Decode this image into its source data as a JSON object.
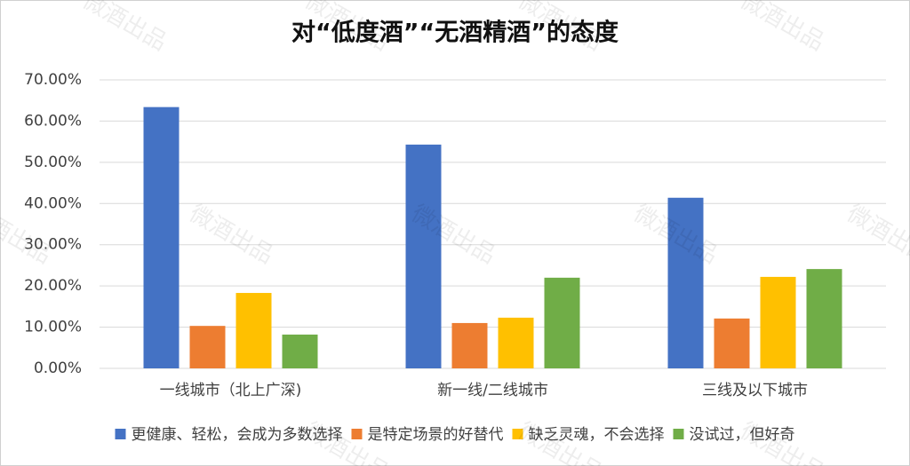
{
  "chart_data": {
    "type": "bar",
    "title": "对“低度酒”“无酒精酒”的态度",
    "watermark": "微酒出品",
    "categories": [
      "一线城市（北上广深)",
      "新一线/二线城市",
      "三线及以下城市"
    ],
    "series": [
      {
        "name": "更健康、轻松，会成为多数选择",
        "color": "#4472c4",
        "values": [
          63.4,
          54.3,
          41.4
        ]
      },
      {
        "name": "是特定场景的好替代",
        "color": "#ed7d31",
        "values": [
          10.3,
          11.0,
          12.1
        ]
      },
      {
        "name": "缺乏灵魂，不会选择",
        "color": "#ffc000",
        "values": [
          18.3,
          12.3,
          22.2
        ]
      },
      {
        "name": "没试过，但好奇",
        "color": "#70ad47",
        "values": [
          8.2,
          22.0,
          24.1
        ]
      }
    ],
    "ylim": [
      0,
      70
    ],
    "yticks": [
      {
        "value": 0,
        "label": "0.00%"
      },
      {
        "value": 10,
        "label": "10.00%"
      },
      {
        "value": 20,
        "label": "20.00%"
      },
      {
        "value": 30,
        "label": "30.00%"
      },
      {
        "value": 40,
        "label": "40.00%"
      },
      {
        "value": 50,
        "label": "50.00%"
      },
      {
        "value": 60,
        "label": "60.00%"
      },
      {
        "value": 70,
        "label": "70.00%"
      }
    ],
    "grid": true,
    "legend": "bottom"
  }
}
